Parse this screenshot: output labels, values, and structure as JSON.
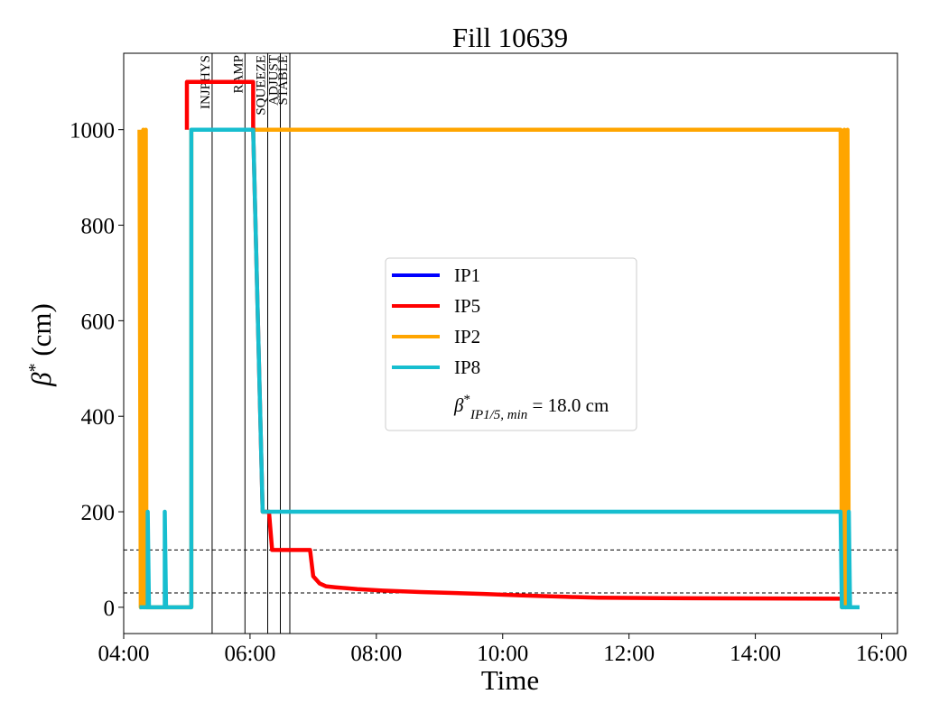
{
  "chart_data": {
    "type": "line",
    "title": "Fill 10639",
    "xlabel": "Time",
    "ylabel_symbol": "β",
    "ylabel_sup": "*",
    "ylabel_unit": "(cm)",
    "xlim": [
      4.0,
      16.25
    ],
    "ylim": [
      -55,
      1160
    ],
    "x_ticks": [
      {
        "value": 4,
        "label": "04:00"
      },
      {
        "value": 6,
        "label": "06:00"
      },
      {
        "value": 8,
        "label": "08:00"
      },
      {
        "value": 10,
        "label": "10:00"
      },
      {
        "value": 12,
        "label": "12:00"
      },
      {
        "value": 14,
        "label": "14:00"
      },
      {
        "value": 16,
        "label": "16:00"
      }
    ],
    "y_ticks": [
      {
        "value": 0,
        "label": "0"
      },
      {
        "value": 200,
        "label": "200"
      },
      {
        "value": 400,
        "label": "400"
      },
      {
        "value": 600,
        "label": "600"
      },
      {
        "value": 800,
        "label": "800"
      },
      {
        "value": 1000,
        "label": "1000"
      }
    ],
    "phases": [
      {
        "label": "INJPHYS",
        "x": 5.4
      },
      {
        "label": "RAMP",
        "x": 5.92
      },
      {
        "label": "SQUEEZE",
        "x": 6.28
      },
      {
        "label": "ADJUST",
        "x": 6.48
      },
      {
        "label": "STABLE",
        "x": 6.63
      }
    ],
    "hlines": [
      120,
      30
    ],
    "series": [
      {
        "name": "IP1",
        "color": "#0000ff",
        "points": [
          [
            5.05,
            1100
          ],
          [
            5.05,
            1100
          ]
        ]
      },
      {
        "name": "IP5",
        "color": "#ff0000",
        "points": [
          [
            5.0,
            1000
          ],
          [
            5.0,
            1100
          ],
          [
            6.05,
            1100
          ],
          [
            6.05,
            1000
          ],
          [
            6.2,
            200
          ],
          [
            6.3,
            200
          ],
          [
            6.35,
            120
          ],
          [
            6.95,
            120
          ],
          [
            7.0,
            65
          ],
          [
            7.1,
            50
          ],
          [
            7.2,
            44
          ],
          [
            7.35,
            42
          ],
          [
            7.7,
            38
          ],
          [
            8.1,
            35
          ],
          [
            8.7,
            32
          ],
          [
            9.2,
            30
          ],
          [
            9.7,
            28
          ],
          [
            10.3,
            25
          ],
          [
            11.0,
            22
          ],
          [
            11.5,
            20
          ],
          [
            12.5,
            19
          ],
          [
            15.35,
            18
          ]
        ]
      },
      {
        "name": "IP2",
        "color": "#ffa500",
        "points": [
          [
            4.25,
            1000
          ],
          [
            4.27,
            0
          ],
          [
            4.31,
            1000
          ],
          [
            4.33,
            0
          ],
          [
            4.35,
            1000
          ],
          [
            4.36,
            0
          ],
          [
            5.07,
            0
          ],
          [
            5.07,
            1000
          ],
          [
            15.35,
            1000
          ],
          [
            15.37,
            0
          ],
          [
            15.41,
            1000
          ],
          [
            15.43,
            0
          ],
          [
            15.46,
            1000
          ],
          [
            15.48,
            0
          ]
        ]
      },
      {
        "name": "IP8",
        "color": "#17becf",
        "points": [
          [
            4.25,
            0
          ],
          [
            4.38,
            0
          ],
          [
            4.38,
            200
          ],
          [
            4.4,
            0
          ],
          [
            4.65,
            0
          ],
          [
            4.65,
            200
          ],
          [
            4.67,
            0
          ],
          [
            5.07,
            0
          ],
          [
            5.07,
            1000
          ],
          [
            6.05,
            1000
          ],
          [
            6.2,
            200
          ],
          [
            15.35,
            200
          ],
          [
            15.37,
            0
          ],
          [
            15.48,
            0
          ],
          [
            15.48,
            200
          ],
          [
            15.5,
            0
          ],
          [
            15.65,
            0
          ]
        ]
      }
    ],
    "legend": {
      "position": "center",
      "entries": [
        "IP1",
        "IP5",
        "IP2",
        "IP8"
      ],
      "note_symbol": "β",
      "note_sup": "*",
      "note_sub": "IP1/5, min",
      "note_value": " = 18.0 cm"
    }
  }
}
